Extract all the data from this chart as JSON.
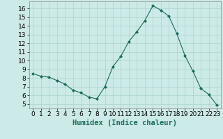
{
  "x": [
    0,
    1,
    2,
    3,
    4,
    5,
    6,
    7,
    8,
    9,
    10,
    11,
    12,
    13,
    14,
    15,
    16,
    17,
    18,
    19,
    20,
    21,
    22,
    23
  ],
  "y": [
    8.5,
    8.2,
    8.1,
    7.7,
    7.3,
    6.6,
    6.3,
    5.8,
    5.6,
    7.0,
    9.3,
    10.5,
    12.2,
    13.3,
    14.6,
    16.3,
    15.8,
    15.1,
    13.1,
    10.6,
    8.8,
    6.8,
    6.1,
    4.9
  ],
  "line_color": "#1a6b5a",
  "marker": "D",
  "marker_size": 2.0,
  "bg_color": "#cceae7",
  "grid_color": "#aad4cc",
  "xlabel": "Humidex (Indice chaleur)",
  "xlim": [
    -0.5,
    23.5
  ],
  "ylim": [
    4.5,
    16.8
  ],
  "yticks": [
    5,
    6,
    7,
    8,
    9,
    10,
    11,
    12,
    13,
    14,
    15,
    16
  ],
  "xticks": [
    0,
    1,
    2,
    3,
    4,
    5,
    6,
    7,
    8,
    9,
    10,
    11,
    12,
    13,
    14,
    15,
    16,
    17,
    18,
    19,
    20,
    21,
    22,
    23
  ],
  "xlabel_fontsize": 7.5,
  "tick_fontsize": 6.5
}
